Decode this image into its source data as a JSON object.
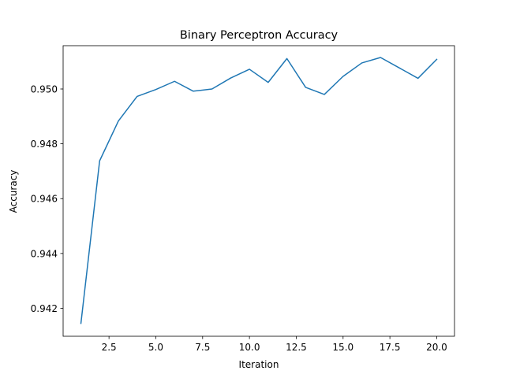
{
  "chart_data": {
    "type": "line",
    "title": "Binary Perceptron Accuracy",
    "xlabel": "Iteration",
    "ylabel": "Accuracy",
    "xlim": [
      0.05,
      20.95
    ],
    "ylim": [
      0.94098,
      0.95158
    ],
    "xticks": [
      2.5,
      5.0,
      7.5,
      10.0,
      12.5,
      15.0,
      17.5,
      20.0
    ],
    "xtick_labels": [
      "2.5",
      "5.0",
      "7.5",
      "10.0",
      "12.5",
      "15.0",
      "17.5",
      "20.0"
    ],
    "yticks": [
      0.942,
      0.944,
      0.946,
      0.948,
      0.95
    ],
    "ytick_labels": [
      "0.942",
      "0.944",
      "0.946",
      "0.948",
      "0.950"
    ],
    "grid": false,
    "series": [
      {
        "color": "#1f77b4",
        "x": [
          1,
          2,
          3,
          4,
          5,
          6,
          7,
          8,
          9,
          10,
          11,
          12,
          13,
          14,
          15,
          16,
          17,
          18,
          19,
          20
        ],
        "y": [
          0.94145,
          0.94738,
          0.94883,
          0.94973,
          0.94998,
          0.95028,
          0.94992,
          0.95,
          0.9504,
          0.95072,
          0.95024,
          0.95111,
          0.95006,
          0.9498,
          0.95046,
          0.95095,
          0.95115,
          0.95077,
          0.95039,
          0.95108
        ]
      }
    ]
  }
}
